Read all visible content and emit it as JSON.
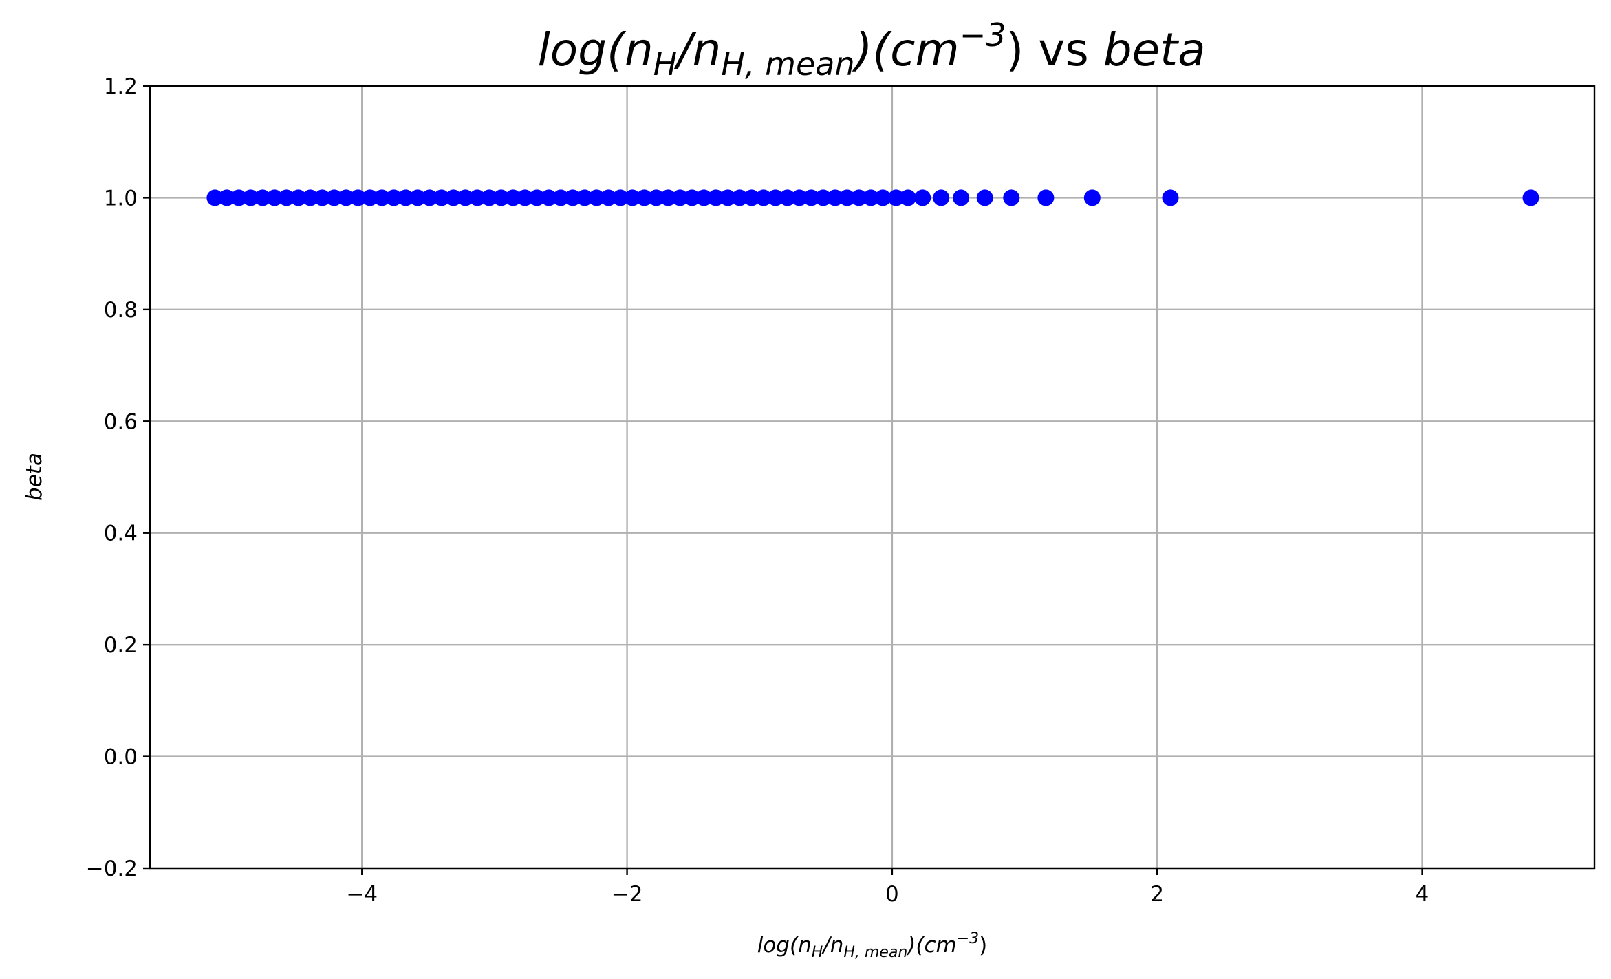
{
  "chart_data": {
    "type": "scatter",
    "title": {
      "text": "log(nH/nH,mean)(cm−3) vs beta",
      "parts": {
        "log": "log(n",
        "H": "H",
        "slash": "/n",
        "Hmean": "H, mean",
        "close": ")(cm",
        "exp": "−3",
        "paren": ")",
        "vs": " vs ",
        "beta": "beta"
      }
    },
    "xlabel": {
      "text": "log(nH/nH,mean)(cm−3)",
      "parts": {
        "log": "log(n",
        "H": "H",
        "slash": "/n",
        "Hmean": "H, mean",
        "close": ")(cm",
        "exp": "−3",
        "paren": ")"
      }
    },
    "ylabel": "beta",
    "xlim": [
      -5.6,
      5.3
    ],
    "ylim": [
      -0.2,
      1.2
    ],
    "xticks": [
      {
        "value": -4,
        "label": "−4"
      },
      {
        "value": -2,
        "label": "−2"
      },
      {
        "value": 0,
        "label": "0"
      },
      {
        "value": 2,
        "label": "2"
      },
      {
        "value": 4,
        "label": "4"
      }
    ],
    "yticks": [
      {
        "value": -0.2,
        "label": "−0.2"
      },
      {
        "value": 0.0,
        "label": "0.0"
      },
      {
        "value": 0.2,
        "label": "0.2"
      },
      {
        "value": 0.4,
        "label": "0.4"
      },
      {
        "value": 0.6,
        "label": "0.6"
      },
      {
        "value": 0.8,
        "label": "0.8"
      },
      {
        "value": 1.0,
        "label": "1.0"
      },
      {
        "value": 1.2,
        "label": "1.2"
      }
    ],
    "grid": true,
    "marker_color": "#0000ff",
    "x": [
      -5.11,
      -5.02,
      -4.93,
      -4.84,
      -4.75,
      -4.66,
      -4.57,
      -4.48,
      -4.39,
      -4.3,
      -4.21,
      -4.12,
      -4.03,
      -3.94,
      -3.85,
      -3.76,
      -3.67,
      -3.58,
      -3.49,
      -3.4,
      -3.31,
      -3.22,
      -3.13,
      -3.04,
      -2.95,
      -2.86,
      -2.77,
      -2.68,
      -2.59,
      -2.5,
      -2.41,
      -2.32,
      -2.23,
      -2.14,
      -2.05,
      -1.96,
      -1.87,
      -1.78,
      -1.69,
      -1.6,
      -1.51,
      -1.42,
      -1.33,
      -1.24,
      -1.15,
      -1.06,
      -0.97,
      -0.88,
      -0.79,
      -0.7,
      -0.61,
      -0.52,
      -0.43,
      -0.34,
      -0.25,
      -0.16,
      -0.07,
      0.03,
      0.12,
      0.23,
      0.37,
      0.52,
      0.7,
      0.9,
      1.16,
      1.51,
      2.1,
      4.82
    ],
    "y": 1.0
  }
}
